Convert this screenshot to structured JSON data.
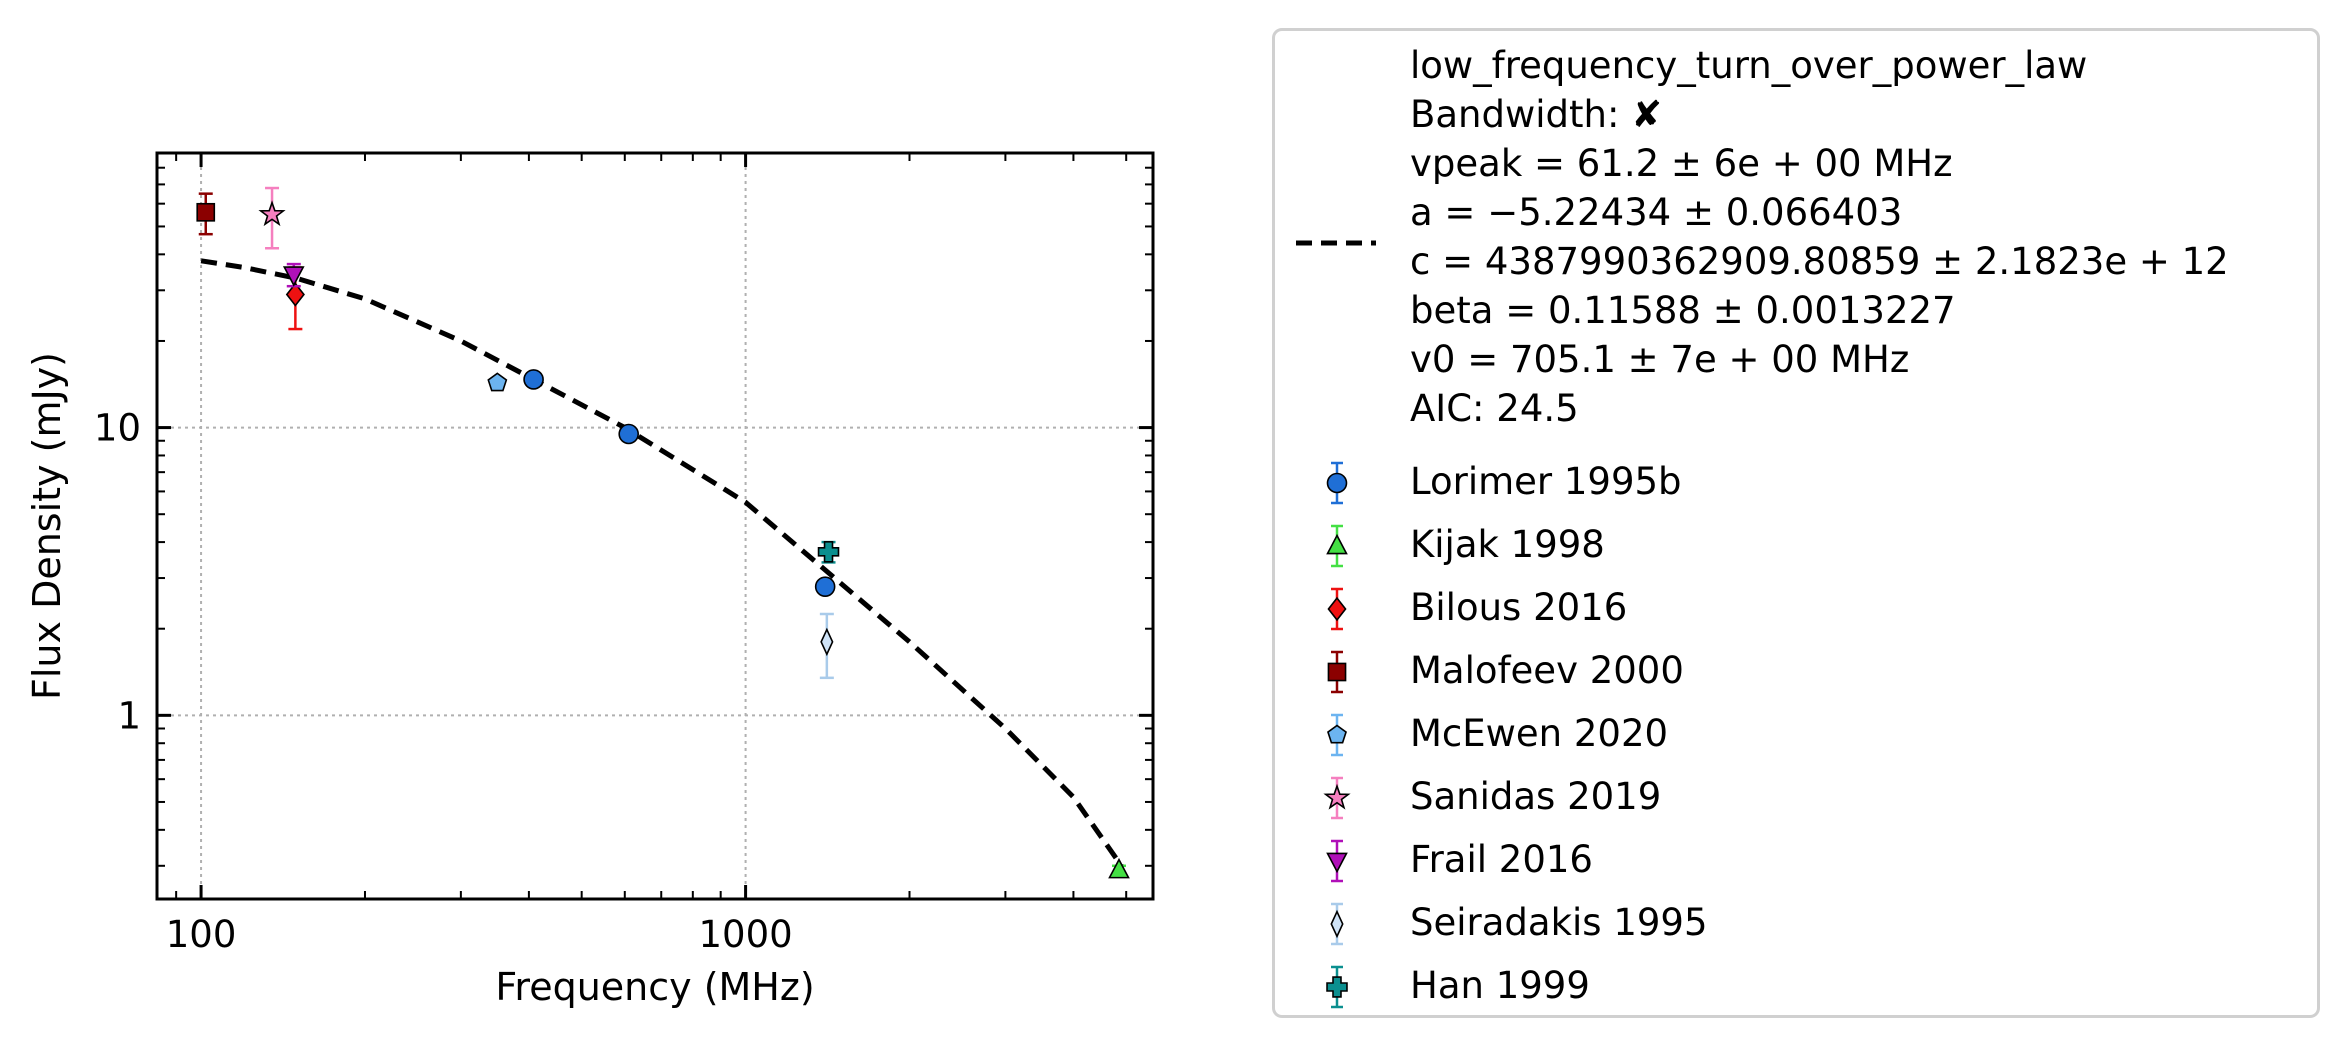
{
  "chart_data": {
    "type": "scatter",
    "xlabel": "Frequency (MHz)",
    "ylabel": "Flux Density (mJy)",
    "xscale": "log",
    "yscale": "log",
    "xlim": [
      83,
      5600
    ],
    "ylim": [
      0.23,
      90
    ],
    "x_ticks": [
      {
        "value": 100,
        "label": "100"
      },
      {
        "value": 1000,
        "label": "1000"
      }
    ],
    "y_ticks": [
      {
        "value": 1,
        "label": "1"
      },
      {
        "value": 10,
        "label": "10"
      }
    ],
    "grid": true,
    "legend_placement": "outside-right",
    "model": {
      "name": "low_frequency_turn_over_power_law",
      "style": "dashed",
      "color": "#000000",
      "curve": [
        {
          "x": 100,
          "y": 38
        },
        {
          "x": 120,
          "y": 36
        },
        {
          "x": 150,
          "y": 33
        },
        {
          "x": 200,
          "y": 28
        },
        {
          "x": 300,
          "y": 20
        },
        {
          "x": 400,
          "y": 15
        },
        {
          "x": 600,
          "y": 10
        },
        {
          "x": 1000,
          "y": 5.5
        },
        {
          "x": 1400,
          "y": 3.2
        },
        {
          "x": 2000,
          "y": 1.8
        },
        {
          "x": 3000,
          "y": 0.9
        },
        {
          "x": 4000,
          "y": 0.52
        },
        {
          "x": 4900,
          "y": 0.3
        }
      ]
    },
    "model_legend_lines": [
      "low_frequency_turn_over_power_law",
      "Bandwidth: ✘",
      "vpeak = 61.2 ± 6e + 00 MHz",
      "a = −5.22434 ± 0.066403",
      "c = 4387990362909.80859 ± 2.1823e + 12",
      "beta = 0.11588 ± 0.0013227",
      "v0 = 705.1 ± 7e + 00 MHz",
      "AIC: 24.5"
    ],
    "series": [
      {
        "name": "Lorimer 1995b",
        "marker": "circle",
        "color": "#1f6fd6",
        "errcolor": "#1f6fd6",
        "points": [
          {
            "x": 408,
            "y": 14.7,
            "err": 0.5
          },
          {
            "x": 610,
            "y": 9.5,
            "err": 0.3
          },
          {
            "x": 1400,
            "y": 2.8,
            "err": 0.1
          }
        ]
      },
      {
        "name": "Kijak 1998",
        "marker": "triangle-up",
        "color": "#44e044",
        "errcolor": "#44e044",
        "points": [
          {
            "x": 4850,
            "y": 0.29,
            "err": 0.01
          }
        ]
      },
      {
        "name": "Bilous 2016",
        "marker": "diamond",
        "color": "#ee1111",
        "errcolor": "#ee1111",
        "points": [
          {
            "x": 149,
            "y": 29,
            "err": 7
          }
        ]
      },
      {
        "name": "Malofeev 2000",
        "marker": "square",
        "color": "#8b0000",
        "errcolor": "#8b0000",
        "points": [
          {
            "x": 102,
            "y": 56,
            "err": 9
          }
        ]
      },
      {
        "name": "McEwen 2020",
        "marker": "pentagon",
        "color": "#6cb4f0",
        "errcolor": "#6cb4f0",
        "points": [
          {
            "x": 350,
            "y": 14.3,
            "err": 0.4
          }
        ]
      },
      {
        "name": "Sanidas 2019",
        "marker": "star",
        "color": "#f57fbf",
        "errcolor": "#f57fbf",
        "points": [
          {
            "x": 135,
            "y": 55,
            "err": 13
          }
        ]
      },
      {
        "name": "Frail 2016",
        "marker": "triangle-down",
        "color": "#b010b8",
        "errcolor": "#b010b8",
        "points": [
          {
            "x": 148,
            "y": 34,
            "err": 3
          }
        ]
      },
      {
        "name": "Seiradakis 1995",
        "marker": "thin-diamond",
        "color": "#cfe3f7",
        "errcolor": "#a9cbea",
        "points": [
          {
            "x": 1410,
            "y": 1.8,
            "err": 0.45
          }
        ]
      },
      {
        "name": "Han 1999",
        "marker": "plus",
        "color": "#0b8f8f",
        "errcolor": "#0b8f8f",
        "points": [
          {
            "x": 1420,
            "y": 3.7,
            "err": 0.3
          }
        ]
      }
    ]
  }
}
